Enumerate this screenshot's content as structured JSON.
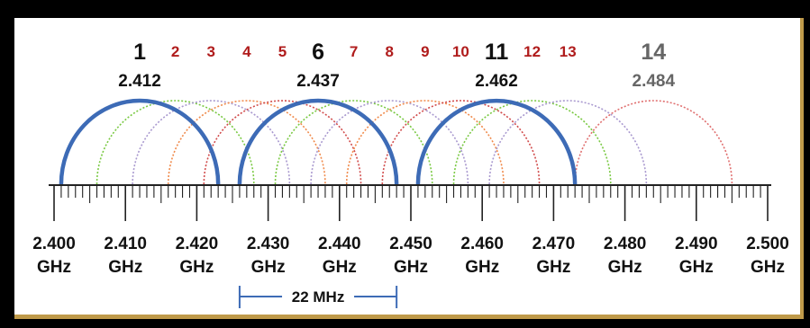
{
  "colors": {
    "primary_channel": "#3d6bb6",
    "channel_label_primary": "#111111",
    "channel_label_secondary": "#b01c1c",
    "channel_label_14": "#666666",
    "arc_palette": [
      "#7ac943",
      "#a999cf",
      "#f08a4b",
      "#d14c4c",
      "#e07070"
    ],
    "panel_border": "#bf9a4a"
  },
  "channels": [
    {
      "number": "1",
      "frequency": "2.412",
      "center": 2.412,
      "primary": true
    },
    {
      "number": "2",
      "center": 2.417
    },
    {
      "number": "3",
      "center": 2.422
    },
    {
      "number": "4",
      "center": 2.427
    },
    {
      "number": "5",
      "center": 2.432
    },
    {
      "number": "6",
      "frequency": "2.437",
      "center": 2.437,
      "primary": true
    },
    {
      "number": "7",
      "center": 2.442
    },
    {
      "number": "8",
      "center": 2.447
    },
    {
      "number": "9",
      "center": 2.452
    },
    {
      "number": "10",
      "center": 2.457
    },
    {
      "number": "11",
      "frequency": "2.462",
      "center": 2.462,
      "primary": true
    },
    {
      "number": "12",
      "center": 2.467
    },
    {
      "number": "13",
      "center": 2.472
    },
    {
      "number": "14",
      "frequency": "2.484",
      "center": 2.484
    }
  ],
  "axis": {
    "min": 2.4,
    "max": 2.5,
    "ticks": [
      {
        "value": "2.400",
        "unit": "GHz"
      },
      {
        "value": "2.410",
        "unit": "GHz"
      },
      {
        "value": "2.420",
        "unit": "GHz"
      },
      {
        "value": "2.430",
        "unit": "GHz"
      },
      {
        "value": "2.440",
        "unit": "GHz"
      },
      {
        "value": "2.450",
        "unit": "GHz"
      },
      {
        "value": "2.460",
        "unit": "GHz"
      },
      {
        "value": "2.470",
        "unit": "GHz"
      },
      {
        "value": "2.480",
        "unit": "GHz"
      },
      {
        "value": "2.490",
        "unit": "GHz"
      },
      {
        "value": "2.500",
        "unit": "GHz"
      }
    ]
  },
  "bandwidth": {
    "label": "22 MHz",
    "from": 2.426,
    "to": 2.448
  }
}
